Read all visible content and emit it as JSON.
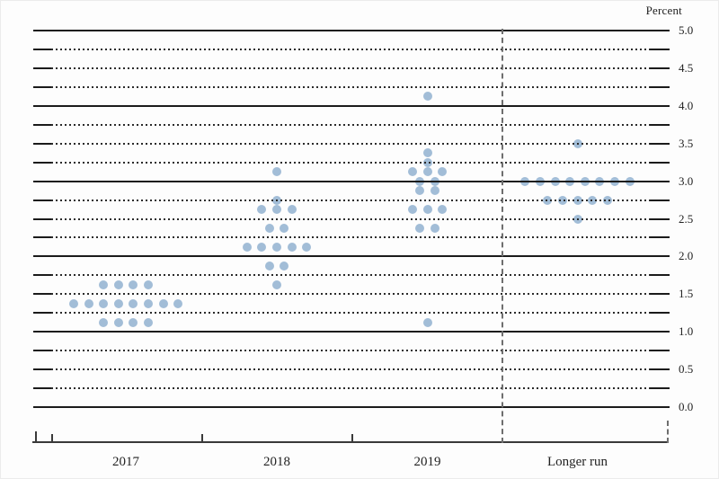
{
  "chart_data": {
    "type": "scatter",
    "subtype": "fomc-dot-plot",
    "title": "",
    "xlabel": "",
    "ylabel": "Percent",
    "ylim": [
      0.0,
      5.0
    ],
    "y_tick_step": 0.5,
    "y_tick_labels": [
      "5.0",
      "4.5",
      "4.0",
      "3.5",
      "3.0",
      "2.5",
      "2.0",
      "1.5",
      "1.0",
      "0.5",
      "0.0"
    ],
    "gridlines": {
      "solid_step": 1.0,
      "dotted_step": 0.25,
      "grid_on": true
    },
    "legend": null,
    "categories": [
      "2017",
      "2018",
      "2019",
      "Longer run"
    ],
    "separator_after_category": "2019",
    "groups": [
      {
        "category": "2017",
        "dots": [
          {
            "rate": 1.625,
            "count": 4
          },
          {
            "rate": 1.375,
            "count": 8
          },
          {
            "rate": 1.125,
            "count": 4
          }
        ]
      },
      {
        "category": "2018",
        "dots": [
          {
            "rate": 3.125,
            "count": 1
          },
          {
            "rate": 2.75,
            "count": 1
          },
          {
            "rate": 2.625,
            "count": 3
          },
          {
            "rate": 2.375,
            "count": 2
          },
          {
            "rate": 2.125,
            "count": 5
          },
          {
            "rate": 1.875,
            "count": 2
          },
          {
            "rate": 1.625,
            "count": 1
          }
        ]
      },
      {
        "category": "2019",
        "dots": [
          {
            "rate": 4.125,
            "count": 1
          },
          {
            "rate": 3.375,
            "count": 1
          },
          {
            "rate": 3.25,
            "count": 1
          },
          {
            "rate": 3.125,
            "count": 3
          },
          {
            "rate": 3.0,
            "count": 2
          },
          {
            "rate": 2.875,
            "count": 2
          },
          {
            "rate": 2.625,
            "count": 3
          },
          {
            "rate": 2.375,
            "count": 2
          },
          {
            "rate": 1.125,
            "count": 1
          }
        ]
      },
      {
        "category": "Longer run",
        "dots": [
          {
            "rate": 3.5,
            "count": 1
          },
          {
            "rate": 3.0,
            "count": 8
          },
          {
            "rate": 2.75,
            "count": 5
          },
          {
            "rate": 2.5,
            "count": 1
          }
        ]
      }
    ],
    "colors": {
      "dot": "#a2bdd7",
      "solid_gridline": "#1b1b1b",
      "dotted_gridline": "#2b2b2b",
      "separator": "#6e6e6e",
      "axis": "#3a3a3a",
      "text": "#222222"
    }
  }
}
